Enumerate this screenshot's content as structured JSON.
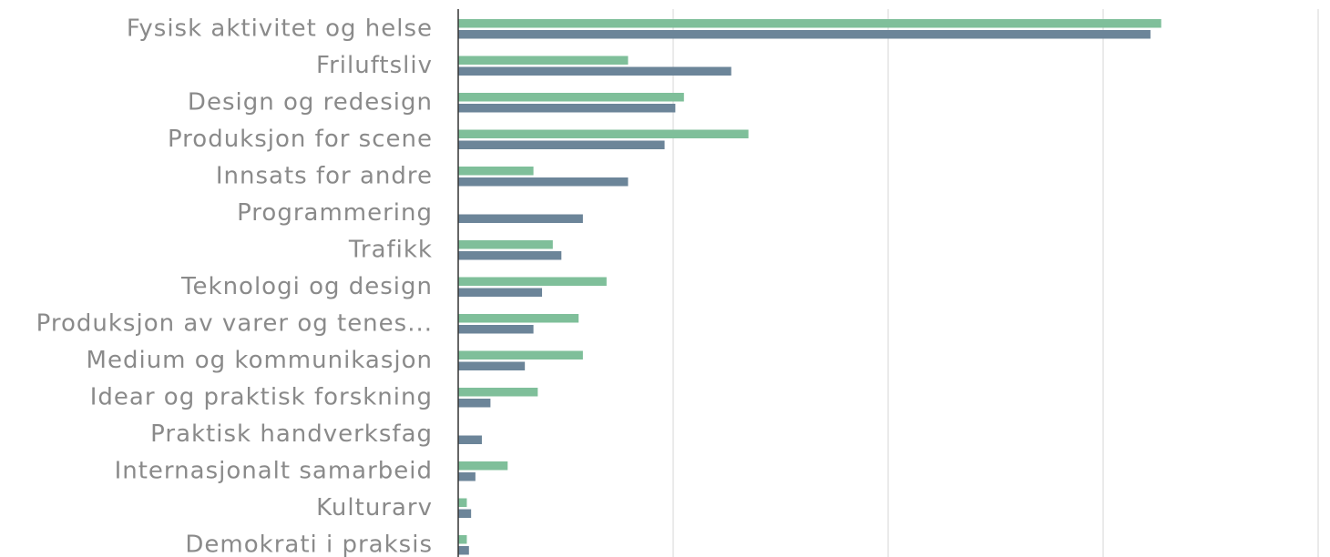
{
  "chart_data": {
    "type": "bar",
    "orientation": "horizontal",
    "categories": [
      "Fysisk aktivitet og helse",
      "Friluftsliv",
      "Design og redesign",
      "Produksjon for scene",
      "Innsats for andre",
      "Programmering",
      "Trafikk",
      "Teknologi og design",
      "Produksjon av varer og tenes...",
      "Medium og kommunikasjon",
      "Idear og praktisk forskning",
      "Praktisk handverksfag",
      "Internasjonalt samarbeid",
      "Kulturarv",
      "Demokrati i praksis"
    ],
    "series": [
      {
        "color": "#7fbf9a",
        "values": [
          32.7,
          7.9,
          10.5,
          13.5,
          3.5,
          0,
          4.4,
          6.9,
          5.6,
          5.8,
          3.7,
          0,
          2.3,
          0.4,
          0.4
        ]
      },
      {
        "color": "#6c8599",
        "values": [
          32.2,
          12.7,
          10.1,
          9.6,
          7.9,
          5.8,
          4.8,
          3.9,
          3.5,
          3.1,
          1.5,
          1.1,
          0.8,
          0.6,
          0.5
        ]
      }
    ],
    "xlim": [
      0,
      40
    ],
    "gridlines": [
      10,
      20,
      30,
      40
    ],
    "grid": true,
    "legend": "none"
  }
}
